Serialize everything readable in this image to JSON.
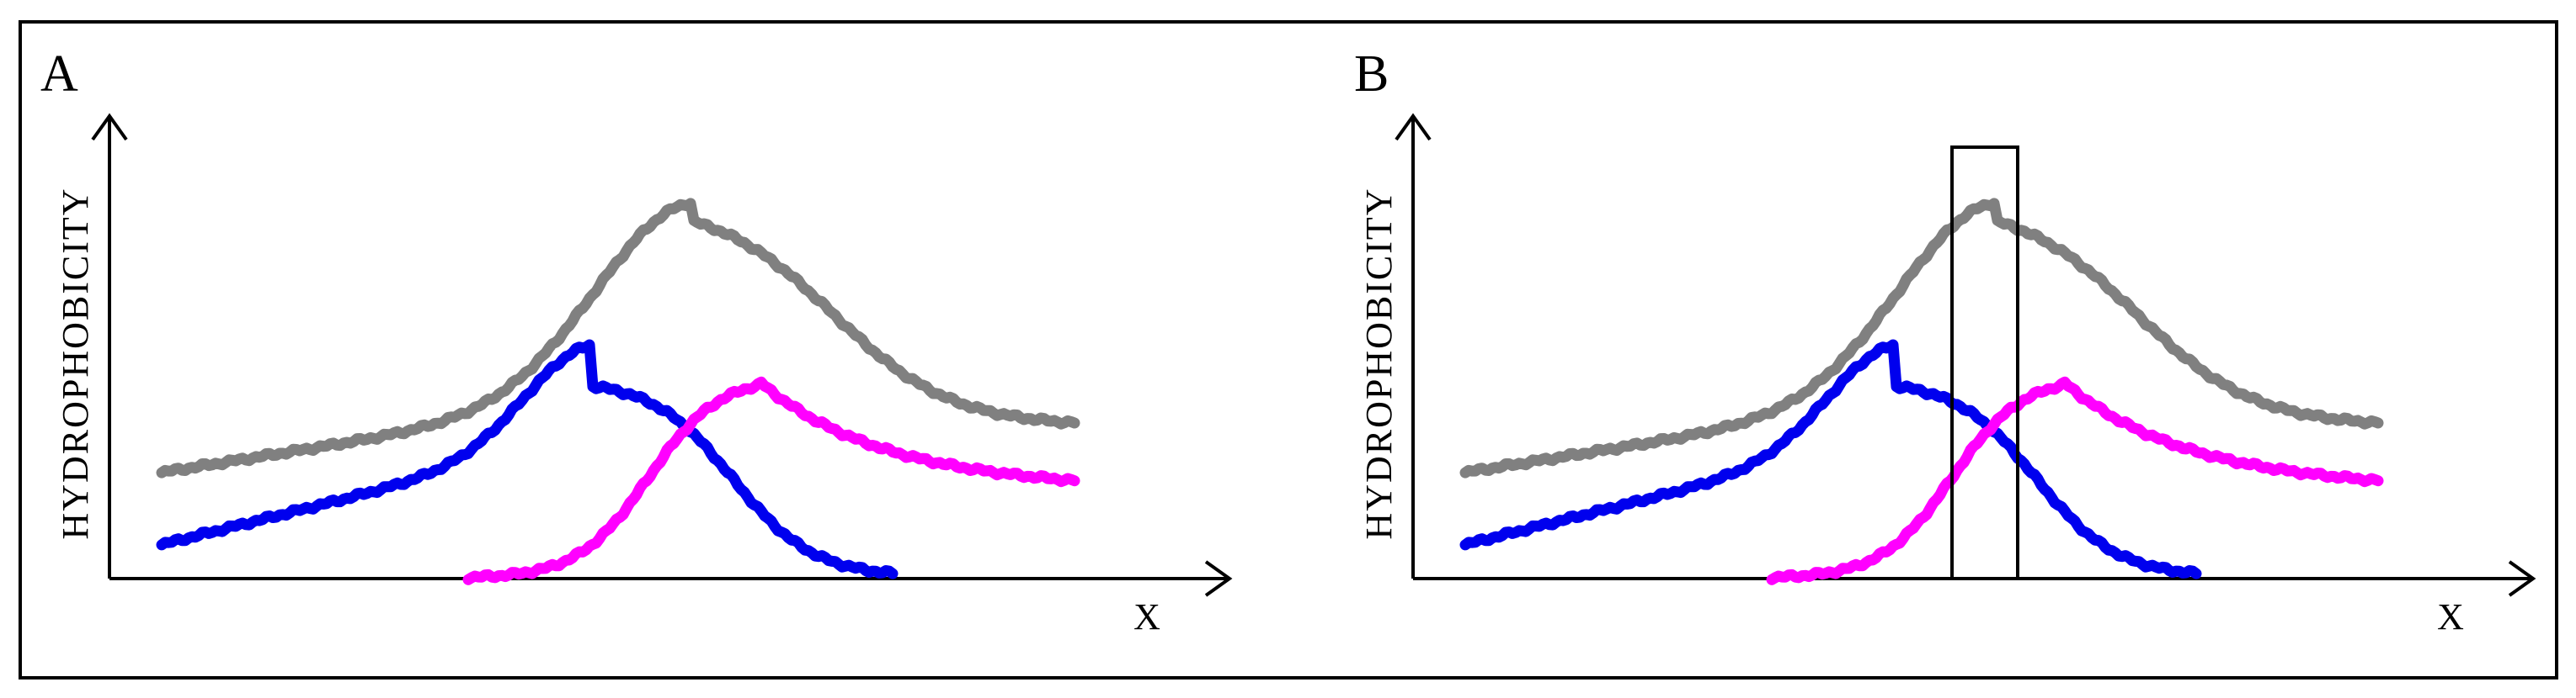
{
  "panels": [
    {
      "label": "A",
      "y_axis_label": "HYDROPHOBICITY",
      "x_axis_label": "X",
      "has_window": false
    },
    {
      "label": "B",
      "y_axis_label": "HYDROPHOBICITY",
      "x_axis_label": "X",
      "has_window": true
    }
  ],
  "curve_colors": {
    "gray": "#808080",
    "blue": "#0000ee",
    "magenta": "#ff00ff"
  }
}
